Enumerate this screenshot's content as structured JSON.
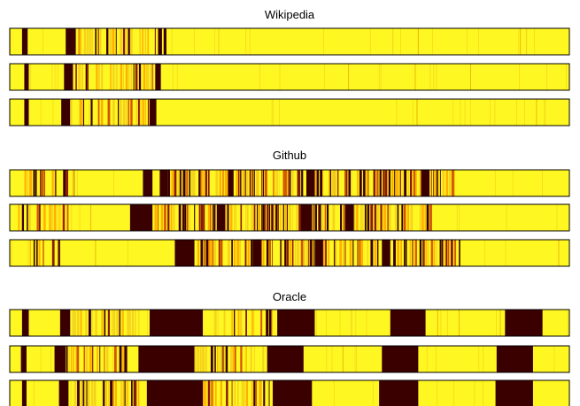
{
  "chart_data": {
    "type": "heatmap",
    "colormap": [
      "#3a0000",
      "#8b1a00",
      "#d45500",
      "#ffb000",
      "#fff022"
    ],
    "background_color": "#fff722",
    "panels": [
      {
        "title": "Wikipedia",
        "rows": [
          {
            "features": [
              {
                "kind": "dark",
                "from": 0.022,
                "to": 0.032
              },
              {
                "kind": "dark",
                "from": 0.1,
                "to": 0.118
              },
              {
                "kind": "texture",
                "from": 0.118,
                "to": 0.265,
                "density": 0.75,
                "dark": 0.3
              },
              {
                "kind": "dark",
                "from": 0.265,
                "to": 0.272
              },
              {
                "kind": "dark",
                "from": 0.275,
                "to": 0.28
              }
            ],
            "lines": 26
          },
          {
            "features": [
              {
                "kind": "dark",
                "from": 0.026,
                "to": 0.034
              },
              {
                "kind": "dark",
                "from": 0.097,
                "to": 0.113
              },
              {
                "kind": "texture",
                "from": 0.113,
                "to": 0.258,
                "density": 0.75,
                "dark": 0.3
              },
              {
                "kind": "dark",
                "from": 0.26,
                "to": 0.27
              }
            ],
            "lines": 24
          },
          {
            "features": [
              {
                "kind": "dark",
                "from": 0.026,
                "to": 0.034
              },
              {
                "kind": "dark",
                "from": 0.092,
                "to": 0.108
              },
              {
                "kind": "texture",
                "from": 0.108,
                "to": 0.25,
                "density": 0.75,
                "dark": 0.3
              },
              {
                "kind": "dark",
                "from": 0.25,
                "to": 0.262
              }
            ],
            "lines": 24
          }
        ]
      },
      {
        "title": "Github",
        "rows": [
          {
            "features": [
              {
                "kind": "texture",
                "from": 0.02,
                "to": 0.115,
                "density": 0.7,
                "dark": 0.55
              },
              {
                "kind": "dark",
                "from": 0.238,
                "to": 0.255
              },
              {
                "kind": "dark",
                "from": 0.268,
                "to": 0.283
              },
              {
                "kind": "texture",
                "from": 0.283,
                "to": 0.795,
                "density": 0.82,
                "dark": 0.55
              },
              {
                "kind": "dark",
                "from": 0.39,
                "to": 0.4
              },
              {
                "kind": "dark",
                "from": 0.53,
                "to": 0.545
              },
              {
                "kind": "dark",
                "from": 0.735,
                "to": 0.75
              }
            ],
            "lines": 18
          },
          {
            "features": [
              {
                "kind": "texture",
                "from": 0.015,
                "to": 0.105,
                "density": 0.7,
                "dark": 0.55
              },
              {
                "kind": "dark",
                "from": 0.215,
                "to": 0.255
              },
              {
                "kind": "texture",
                "from": 0.255,
                "to": 0.755,
                "density": 0.82,
                "dark": 0.55
              },
              {
                "kind": "dark",
                "from": 0.37,
                "to": 0.385
              },
              {
                "kind": "dark",
                "from": 0.52,
                "to": 0.54
              },
              {
                "kind": "dark",
                "from": 0.6,
                "to": 0.615
              }
            ],
            "lines": 18
          },
          {
            "features": [
              {
                "kind": "texture",
                "from": 0.02,
                "to": 0.09,
                "density": 0.7,
                "dark": 0.55
              },
              {
                "kind": "dark",
                "from": 0.295,
                "to": 0.33
              },
              {
                "kind": "texture",
                "from": 0.33,
                "to": 0.805,
                "density": 0.82,
                "dark": 0.55
              },
              {
                "kind": "dark",
                "from": 0.435,
                "to": 0.45
              },
              {
                "kind": "dark",
                "from": 0.545,
                "to": 0.56
              },
              {
                "kind": "dark",
                "from": 0.665,
                "to": 0.68
              }
            ],
            "lines": 18
          }
        ]
      },
      {
        "title": "Oracle",
        "rows": [
          {
            "features": [
              {
                "kind": "dark",
                "from": 0.022,
                "to": 0.034
              },
              {
                "kind": "dark",
                "from": 0.09,
                "to": 0.108
              },
              {
                "kind": "texture",
                "from": 0.108,
                "to": 0.23,
                "density": 0.7,
                "dark": 0.4
              },
              {
                "kind": "dark",
                "from": 0.25,
                "to": 0.345
              },
              {
                "kind": "texture",
                "from": 0.345,
                "to": 0.47,
                "density": 0.55,
                "dark": 0.45
              },
              {
                "kind": "dark",
                "from": 0.478,
                "to": 0.545
              },
              {
                "kind": "dark",
                "from": 0.68,
                "to": 0.743
              },
              {
                "kind": "dark",
                "from": 0.885,
                "to": 0.952
              }
            ],
            "lines": 30
          },
          {
            "features": [
              {
                "kind": "dark",
                "from": 0.02,
                "to": 0.03
              },
              {
                "kind": "texture",
                "from": 0.08,
                "to": 0.21,
                "density": 0.7,
                "dark": 0.4
              },
              {
                "kind": "dark",
                "from": 0.08,
                "to": 0.1
              },
              {
                "kind": "dark",
                "from": 0.23,
                "to": 0.33
              },
              {
                "kind": "texture",
                "from": 0.33,
                "to": 0.46,
                "density": 0.55,
                "dark": 0.45
              },
              {
                "kind": "dark",
                "from": 0.46,
                "to": 0.525
              },
              {
                "kind": "dark",
                "from": 0.665,
                "to": 0.73
              },
              {
                "kind": "dark",
                "from": 0.87,
                "to": 0.935
              }
            ],
            "lines": 30
          },
          {
            "features": [
              {
                "kind": "dark",
                "from": 0.022,
                "to": 0.03
              },
              {
                "kind": "dark",
                "from": 0.088,
                "to": 0.105
              },
              {
                "kind": "texture",
                "from": 0.105,
                "to": 0.235,
                "density": 0.7,
                "dark": 0.4
              },
              {
                "kind": "dark",
                "from": 0.245,
                "to": 0.345
              },
              {
                "kind": "texture",
                "from": 0.345,
                "to": 0.47,
                "density": 0.55,
                "dark": 0.45
              },
              {
                "kind": "dark",
                "from": 0.47,
                "to": 0.54
              },
              {
                "kind": "dark",
                "from": 0.66,
                "to": 0.73
              },
              {
                "kind": "dark",
                "from": 0.868,
                "to": 0.935
              }
            ],
            "lines": 30
          }
        ]
      }
    ]
  }
}
